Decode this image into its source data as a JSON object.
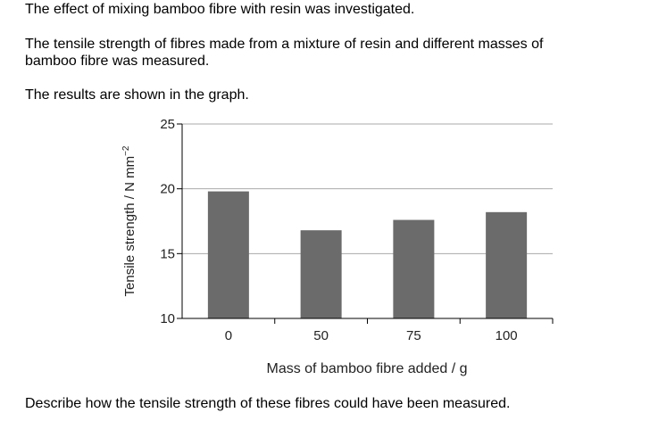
{
  "question": {
    "intro": "The effect of mixing bamboo fibre with resin was investigated.",
    "line1": "The tensile strength of fibres made from a mixture of resin and different masses of",
    "line2": "bamboo fibre was measured.",
    "results": "The results are shown in the graph.",
    "prompt": "Describe how the tensile strength of these fibres could have been measured."
  },
  "chart_data": {
    "type": "bar",
    "categories": [
      "0",
      "50",
      "75",
      "100"
    ],
    "values": [
      19.8,
      16.8,
      17.6,
      18.2
    ],
    "xlabel": "Mass of bamboo fibre added / g",
    "ylabel": "Tensile strength / N mm",
    "ylabel_superscript": "−2",
    "ylim": [
      10,
      25
    ],
    "yticks": [
      10,
      15,
      20,
      25
    ],
    "grid": true,
    "bar_color": "#6b6b6b",
    "grid_color": "#aaaaaa"
  }
}
